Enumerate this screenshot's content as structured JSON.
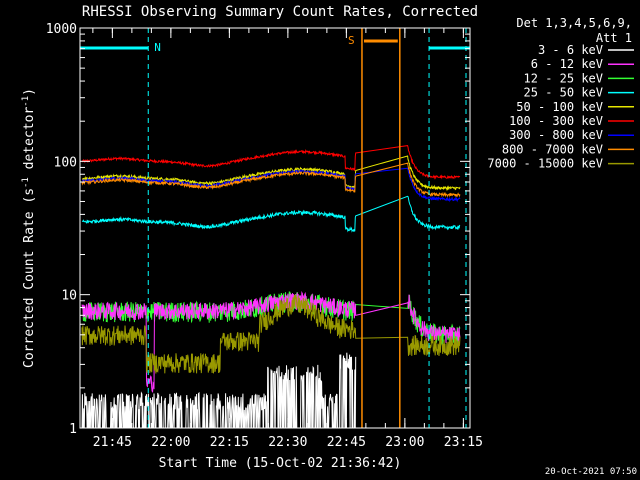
{
  "chart_data": {
    "type": "line",
    "title": "RHESSI Observing Summary Count Rates, Corrected",
    "xlabel": "Start Time (15-Oct-02 21:36:42)",
    "ylabel": "Corrected Count Rate (s",
    "ylabel_sup1": "-1",
    "ylabel_mid": " detector",
    "ylabel_sup2": "-1",
    "ylabel_end": ")",
    "yscale": "log",
    "ylim": [
      1,
      1000
    ],
    "y_ticks": [
      {
        "value": 1,
        "label": "1"
      },
      {
        "value": 10,
        "label": "10"
      },
      {
        "value": 100,
        "label": "100"
      },
      {
        "value": 1000,
        "label": "1000"
      }
    ],
    "x_range_minutes": [
      0,
      100
    ],
    "x_ticks": [
      {
        "t": 8.3,
        "label": "21:45"
      },
      {
        "t": 23.3,
        "label": "22:00"
      },
      {
        "t": 38.3,
        "label": "22:15"
      },
      {
        "t": 53.3,
        "label": "22:30"
      },
      {
        "t": 68.3,
        "label": "22:45"
      },
      {
        "t": 83.3,
        "label": "23:00"
      },
      {
        "t": 98.3,
        "label": "23:15"
      }
    ],
    "legend_header": [
      "Det 1,3,4,5,6,9,",
      "Att 1"
    ],
    "series": [
      {
        "name": "3 - 6 keV",
        "color": "#ffffff"
      },
      {
        "name": "6 - 12 keV",
        "color": "#ff33ff"
      },
      {
        "name": "12 - 25 keV",
        "color": "#33ff33"
      },
      {
        "name": "25 - 50 keV",
        "color": "#00ffff"
      },
      {
        "name": "50 - 100 keV",
        "color": "#e6e600"
      },
      {
        "name": "100 - 300 keV",
        "color": "#ff0000"
      },
      {
        "name": "300 - 800 keV",
        "color": "#0000ff"
      },
      {
        "name": "800 - 7000 keV",
        "color": "#ff8c00"
      },
      {
        "name": "7000 - 15000 keV",
        "color": "#999900"
      }
    ],
    "annotations": {
      "night_label": "N",
      "saa_label": "S",
      "night_intervals": [
        [
          0,
          17.5
        ],
        [
          89.5,
          100
        ]
      ],
      "saa_interval": [
        72.3,
        82
      ]
    }
  },
  "footer": {
    "timestamp": "20-Oct-2021 07:50"
  },
  "colors": {
    "night": "#00ffff",
    "saa": "#ff8c00",
    "background": "#000000",
    "foreground": "#ffffff"
  }
}
